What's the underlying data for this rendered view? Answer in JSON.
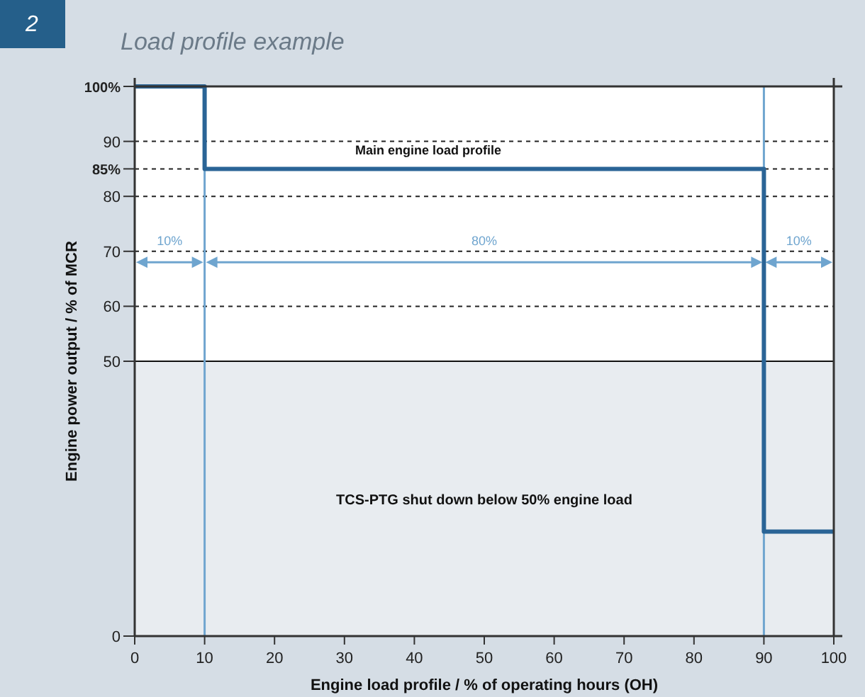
{
  "chart_data": {
    "type": "step",
    "title": "Load profile example",
    "xlabel": "Engine load profile / % of operating hours (OH)",
    "ylabel": "Engine power output  / % of MCR",
    "x": [
      0,
      10,
      90,
      100
    ],
    "series": [
      {
        "name": "Main engine load profile",
        "color": "#2a6496",
        "values": [
          100,
          85,
          19,
          19
        ]
      }
    ],
    "xlim": [
      0,
      100
    ],
    "xticks": [
      0,
      10,
      20,
      30,
      40,
      50,
      60,
      70,
      80,
      90,
      100
    ],
    "ylim": [
      0,
      100
    ],
    "yticks": [
      0,
      50,
      60,
      70,
      80,
      {
        "value": 85,
        "label": "85%"
      },
      90,
      {
        "value": 100,
        "label": "100%"
      }
    ],
    "grid": "y",
    "marker": "none",
    "line_style": "solid",
    "legend": false,
    "ref_lines": [
      {
        "axis": "y",
        "value": 50,
        "color": "#111111"
      },
      {
        "axis": "x",
        "value": 10,
        "color": "#6fa5cf"
      },
      {
        "axis": "x",
        "value": 90,
        "color": "#6fa5cf"
      }
    ],
    "bands": [
      {
        "axis": "y",
        "from": 0,
        "to": 50,
        "label": "TCS-PTG shut down below 50% engine load",
        "color": "#e8ecf0"
      }
    ],
    "annotations": [
      "2",
      "10%",
      "80%",
      "10%"
    ]
  }
}
